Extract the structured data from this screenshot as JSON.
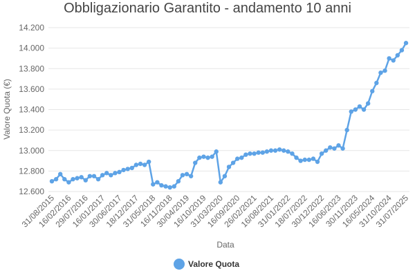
{
  "chart_data": {
    "type": "line",
    "title": "Obbligazionario Garantito - andamento 10 anni",
    "x_label": "Data",
    "y_label": "Valore Quota (€)",
    "categories": [
      "31/08/2015",
      null,
      null,
      null,
      "16/02/2016",
      null,
      null,
      null,
      "29/07/2016",
      null,
      null,
      null,
      "16/01/2017",
      null,
      null,
      null,
      "30/06/2017",
      null,
      null,
      null,
      "18/12/2017",
      null,
      null,
      null,
      "31/05/2018",
      null,
      null,
      null,
      "16/11/2018",
      null,
      null,
      null,
      "30/04/2019",
      null,
      null,
      null,
      "16/10/2019",
      null,
      null,
      null,
      "31/03/2020",
      null,
      null,
      null,
      "16/09/2020",
      null,
      null,
      null,
      "26/02/2021",
      null,
      null,
      null,
      "16/08/2021",
      null,
      null,
      null,
      "31/01/2022",
      null,
      null,
      null,
      "18/07/2022",
      null,
      null,
      null,
      "30/12/2022",
      null,
      null,
      null,
      "16/06/2023",
      null,
      null,
      null,
      "30/11/2023",
      null,
      null,
      null,
      "16/05/2024",
      null,
      null,
      null,
      "31/10/2024",
      null,
      null,
      null,
      "31/07/2025"
    ],
    "series": [
      {
        "name": "Valore Quota",
        "color": "#5ea3e6",
        "values": [
          12.7,
          12.72,
          12.77,
          12.72,
          12.69,
          12.72,
          12.73,
          12.74,
          12.71,
          12.75,
          12.75,
          12.72,
          12.76,
          12.78,
          12.76,
          12.78,
          12.79,
          12.81,
          12.82,
          12.83,
          12.86,
          12.87,
          12.86,
          12.89,
          12.67,
          12.69,
          12.66,
          12.65,
          12.64,
          12.65,
          12.7,
          12.76,
          12.77,
          12.75,
          12.88,
          12.93,
          12.94,
          12.93,
          12.94,
          12.99,
          12.69,
          12.75,
          12.84,
          12.88,
          12.92,
          12.93,
          12.96,
          12.97,
          12.97,
          12.98,
          12.98,
          12.99,
          13.0,
          13.0,
          13.01,
          13.0,
          12.99,
          12.97,
          12.93,
          12.9,
          12.91,
          12.91,
          12.92,
          12.89,
          12.97,
          13.0,
          13.03,
          13.02,
          13.05,
          13.02,
          13.2,
          13.38,
          13.4,
          13.43,
          13.4,
          13.46,
          13.58,
          13.66,
          13.76,
          13.78,
          13.9,
          13.88,
          13.93,
          13.98,
          14.05
        ]
      }
    ],
    "ylim": [
      12.6,
      14.2
    ],
    "yticks": [
      {
        "value": 12.6,
        "label": "12.600"
      },
      {
        "value": 12.8,
        "label": "12.800"
      },
      {
        "value": 13.0,
        "label": "13.000"
      },
      {
        "value": 13.2,
        "label": "13.200"
      },
      {
        "value": 13.4,
        "label": "13.400"
      },
      {
        "value": 13.6,
        "label": "13.600"
      },
      {
        "value": 13.8,
        "label": "13.800"
      },
      {
        "value": 14.0,
        "label": "14.000"
      },
      {
        "value": 14.2,
        "label": "14.200"
      }
    ],
    "grid": true
  }
}
